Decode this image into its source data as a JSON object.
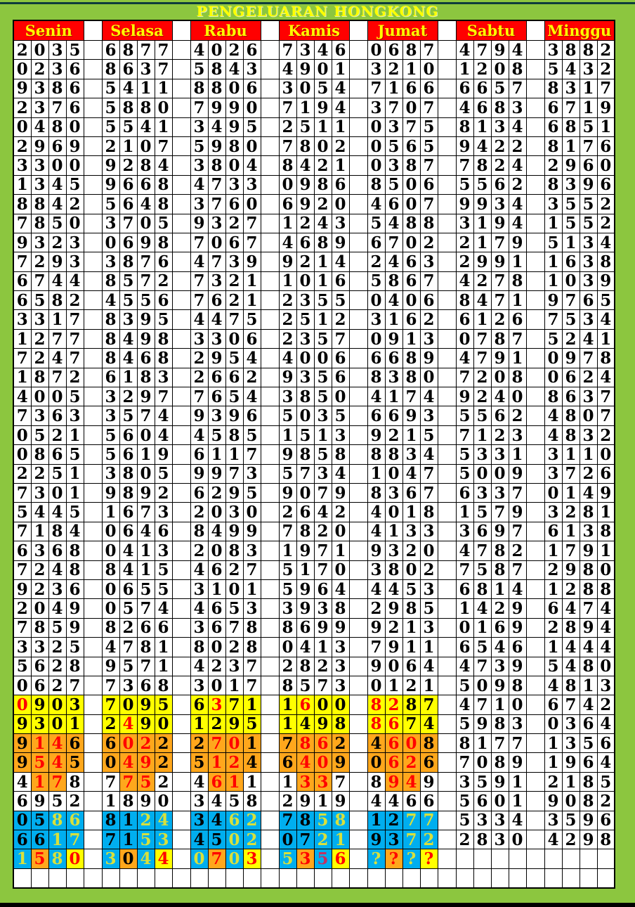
{
  "title": "PENGELUARAN HONGKONG",
  "days": [
    "Senin",
    "Selasa",
    "Rabu",
    "Kamis",
    "Jumat",
    "Sabtu",
    "Minggu"
  ],
  "colors": {
    "page_bg": "#8cc63f",
    "header_bg": "#ff0000",
    "header_text": "#ffff00",
    "title_text": "#ffff00",
    "yellow": "#ffff00",
    "orange": "#ffa71c",
    "blue": "#00aeef",
    "red": "#ff0000",
    "yellow_green": "#d8e03c",
    "crimson": "#c43060",
    "top_line": "#0e3c3c",
    "bottom_line": "#000000",
    "grid_border": "#000000"
  },
  "rows": [
    {
      "cells": [
        "2035",
        "6877",
        "4026",
        "7346",
        "0687",
        "4794",
        "3882"
      ]
    },
    {
      "cells": [
        "0236",
        "8637",
        "5843",
        "4901",
        "3210",
        "1208",
        "5432"
      ]
    },
    {
      "cells": [
        "9386",
        "5411",
        "8806",
        "3054",
        "7166",
        "6657",
        "8317"
      ]
    },
    {
      "cells": [
        "2376",
        "5880",
        "7990",
        "7194",
        "3707",
        "4683",
        "6719"
      ]
    },
    {
      "cells": [
        "0480",
        "5541",
        "3495",
        "2511",
        "0375",
        "8134",
        "6851"
      ]
    },
    {
      "cells": [
        "2969",
        "2107",
        "5980",
        "7802",
        "0565",
        "9422",
        "8176"
      ]
    },
    {
      "cells": [
        "3300",
        "9284",
        "3804",
        "8421",
        "0387",
        "7824",
        "2960"
      ]
    },
    {
      "cells": [
        "1345",
        "9668",
        "4733",
        "0986",
        "8506",
        "5562",
        "8396"
      ]
    },
    {
      "cells": [
        "8842",
        "5648",
        "3760",
        "6920",
        "4607",
        "9934",
        "3552"
      ]
    },
    {
      "cells": [
        "7850",
        "3705",
        "9327",
        "1243",
        "5488",
        "3194",
        "1552"
      ]
    },
    {
      "cells": [
        "9323",
        "0698",
        "7067",
        "4689",
        "6702",
        "2179",
        "5134"
      ]
    },
    {
      "cells": [
        "7293",
        "3876",
        "4739",
        "9214",
        "2463",
        "2991",
        "1638"
      ]
    },
    {
      "cells": [
        "6744",
        "8572",
        "7321",
        "1016",
        "5867",
        "4278",
        "1039"
      ]
    },
    {
      "cells": [
        "6582",
        "4556",
        "7621",
        "2355",
        "0406",
        "8471",
        "9765"
      ]
    },
    {
      "cells": [
        "3317",
        "8395",
        "4475",
        "2512",
        "3162",
        "6126",
        "7534"
      ]
    },
    {
      "cells": [
        "1277",
        "8498",
        "3306",
        "2357",
        "0913",
        "0787",
        "5241"
      ]
    },
    {
      "cells": [
        "7247",
        "8468",
        "2954",
        "4006",
        "6689",
        "4791",
        "0978"
      ]
    },
    {
      "cells": [
        "1872",
        "6183",
        "2662",
        "9356",
        "8380",
        "7208",
        "0624"
      ]
    },
    {
      "cells": [
        "4005",
        "3297",
        "7654",
        "3850",
        "4174",
        "9240",
        "8637"
      ]
    },
    {
      "cells": [
        "7363",
        "3574",
        "9396",
        "5035",
        "6693",
        "5562",
        "4807"
      ]
    },
    {
      "cells": [
        "0521",
        "5604",
        "4585",
        "1513",
        "9215",
        "7123",
        "4832"
      ]
    },
    {
      "cells": [
        "0865",
        "5619",
        "6117",
        "9858",
        "8834",
        "5331",
        "3110"
      ]
    },
    {
      "cells": [
        "2251",
        "3805",
        "9973",
        "5734",
        "1047",
        "5009",
        "3726"
      ]
    },
    {
      "cells": [
        "7301",
        "9892",
        "6295",
        "9079",
        "8367",
        "6337",
        "0149"
      ]
    },
    {
      "cells": [
        "5445",
        "1673",
        "2030",
        "2642",
        "4018",
        "1579",
        "3281"
      ]
    },
    {
      "cells": [
        "7184",
        "0646",
        "8499",
        "7820",
        "4133",
        "3697",
        "6138"
      ]
    },
    {
      "cells": [
        "6368",
        "0413",
        "2083",
        "1971",
        "9320",
        "4782",
        "1791"
      ]
    },
    {
      "cells": [
        "7248",
        "8415",
        "4627",
        "5170",
        "3802",
        "7587",
        "2980"
      ]
    },
    {
      "cells": [
        "9236",
        "0655",
        "3101",
        "5964",
        "4453",
        "6814",
        "1288"
      ]
    },
    {
      "cells": [
        "2049",
        "0574",
        "4653",
        "3938",
        "2985",
        "1429",
        "6474"
      ]
    },
    {
      "cells": [
        "7859",
        "8266",
        "3678",
        "8699",
        "9213",
        "0169",
        "2894"
      ]
    },
    {
      "cells": [
        "3325",
        "4781",
        "8028",
        "0413",
        "7911",
        "6546",
        "1444"
      ]
    },
    {
      "cells": [
        "5628",
        "9571",
        "4237",
        "2823",
        "9064",
        "4739",
        "5480"
      ]
    },
    {
      "cells": [
        "0627",
        "7368",
        "3017",
        "8573",
        "0121",
        "5098",
        "4813"
      ]
    },
    {
      "cells": [
        "0903",
        "7095",
        "6371",
        "1600",
        "8287",
        "4710",
        "6742"
      ],
      "styles": [
        [
          "yr",
          "yk",
          "yk",
          "yk"
        ],
        [
          "yk",
          "yk",
          "yk",
          "yk"
        ],
        [
          "yk",
          "yr",
          "yk",
          "yk"
        ],
        [
          "yk",
          "yr",
          "yk",
          "yk"
        ],
        [
          "yr",
          "yr",
          "yk",
          "yk"
        ],
        null,
        null
      ]
    },
    {
      "cells": [
        "9301",
        "2490",
        "1295",
        "1498",
        "8674",
        "5983",
        "0364"
      ],
      "styles": [
        [
          "yk",
          "yk",
          "yk",
          "yk"
        ],
        [
          "yk",
          "yr",
          "yk",
          "yk"
        ],
        [
          "yk",
          "yk",
          "yk",
          "yk"
        ],
        [
          "yk",
          "yk",
          "yk",
          "yk"
        ],
        [
          "yr",
          "yr",
          "yk",
          "yk"
        ],
        null,
        null
      ]
    },
    {
      "cells": [
        "9146",
        "6022",
        "2701",
        "7862",
        "4608",
        "8177",
        "1356"
      ],
      "styles": [
        [
          "ok",
          "or",
          "or",
          "ok"
        ],
        [
          "ok",
          "or",
          "or",
          "ok"
        ],
        [
          "ok",
          "or",
          "or",
          "ok"
        ],
        [
          "ok",
          "or",
          "or",
          "ok"
        ],
        [
          "ok",
          "or",
          "or",
          "ok"
        ],
        null,
        null
      ]
    },
    {
      "cells": [
        "9545",
        "0492",
        "5124",
        "6409",
        "0626",
        "7089",
        "1964"
      ],
      "styles": [
        [
          "ok",
          "or",
          "or",
          "ok"
        ],
        [
          "ok",
          "or",
          "or",
          "ok"
        ],
        [
          "ok",
          "or",
          "or",
          "ok"
        ],
        [
          "ok",
          "or",
          "or",
          "ok"
        ],
        [
          "ok",
          "or",
          "or",
          "ok"
        ],
        null,
        null
      ]
    },
    {
      "cells": [
        "4178",
        "7752",
        "4611",
        "1337",
        "8949",
        "3591",
        "2185"
      ],
      "styles": [
        [
          "wk",
          "or",
          "or",
          "wk"
        ],
        [
          "wk",
          "or",
          "or",
          "wk"
        ],
        [
          "wk",
          "or",
          "or",
          "wk"
        ],
        [
          "wk",
          "or",
          "or",
          "wk"
        ],
        [
          "wk",
          "or",
          "or",
          "wk"
        ],
        null,
        null
      ]
    },
    {
      "cells": [
        "6952",
        "1890",
        "3458",
        "2919",
        "4466",
        "5601",
        "9082"
      ]
    },
    {
      "cells": [
        "0586",
        "8124",
        "3462",
        "7858",
        "1277",
        "5334",
        "3596"
      ],
      "styles": [
        [
          "bk",
          "bk",
          "by",
          "by"
        ],
        [
          "bk",
          "bk",
          "by",
          "by"
        ],
        [
          "bk",
          "bk",
          "by",
          "by"
        ],
        [
          "bk",
          "bk",
          "by",
          "by"
        ],
        [
          "bk",
          "bk",
          "by",
          "by"
        ],
        null,
        null
      ]
    },
    {
      "cells": [
        "6617",
        "7153",
        "4502",
        "0721",
        "9372",
        "2830",
        "4298"
      ],
      "styles": [
        [
          "bk",
          "bk",
          "by",
          "by"
        ],
        [
          "bk",
          "bk",
          "by",
          "by"
        ],
        [
          "bk",
          "bk",
          "by",
          "by"
        ],
        [
          "bk",
          "bk",
          "by",
          "by"
        ],
        [
          "bk",
          "bk",
          "by",
          "by"
        ],
        null,
        null
      ]
    },
    {
      "cells": [
        "1580",
        "3044",
        "0703",
        "5356",
        "????",
        "",
        ""
      ],
      "styles": [
        [
          "by",
          "or",
          "by",
          "yr"
        ],
        [
          "by",
          "ok",
          "by",
          "yr"
        ],
        [
          "by",
          "or",
          "by",
          "yr"
        ],
        [
          "by",
          "or",
          "bc",
          "yr"
        ],
        [
          "by",
          "or",
          "by",
          "yr"
        ],
        null,
        null
      ]
    },
    {
      "cells": [
        "",
        "",
        "",
        "",
        "",
        "",
        ""
      ]
    }
  ]
}
